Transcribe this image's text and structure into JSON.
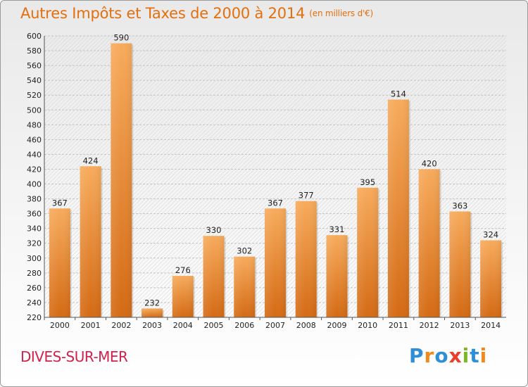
{
  "header": {
    "title": "Autres Impôts et Taxes de 2000 à 2014",
    "unit": "(en milliers d'€)"
  },
  "footer": {
    "city": "DIVES-SUR-MER",
    "logo": "Proxiti"
  },
  "colors": {
    "bar_light": "#f6a552",
    "bar_dark": "#d86f18",
    "title": "#e36f0e",
    "city": "#d4204c"
  },
  "chart_data": {
    "type": "bar",
    "title": "Autres Impôts et Taxes de 2000 à 2014",
    "subtitle": "(en milliers d'€)",
    "xlabel": "",
    "ylabel": "",
    "categories": [
      "2000",
      "2001",
      "2002",
      "2003",
      "2004",
      "2005",
      "2006",
      "2007",
      "2008",
      "2009",
      "2010",
      "2011",
      "2012",
      "2013",
      "2014"
    ],
    "values": [
      367,
      424,
      590,
      232,
      276,
      330,
      302,
      367,
      377,
      331,
      395,
      514,
      420,
      363,
      324
    ],
    "ylim": [
      220,
      600
    ],
    "ytick_step": 20,
    "grid": true,
    "legend": "none"
  }
}
